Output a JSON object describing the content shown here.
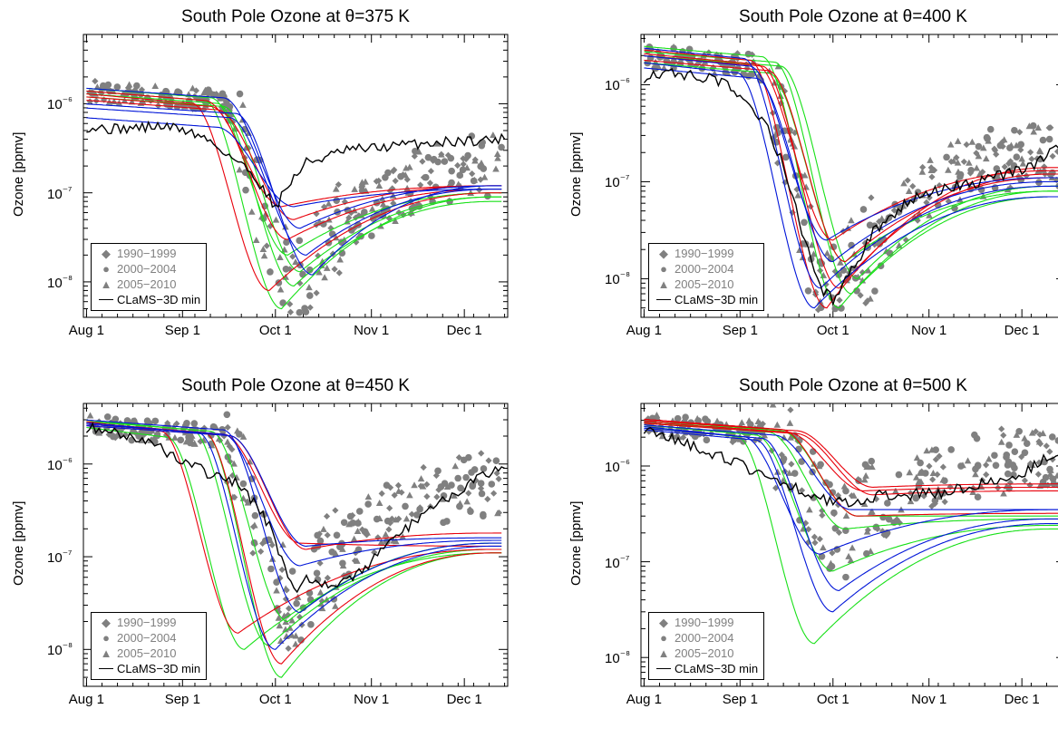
{
  "colors": {
    "obs": "#808080",
    "model_min": "#000000",
    "red": "#e8000b",
    "green": "#18e018",
    "blue": "#0015d8"
  },
  "legend": [
    {
      "label": "1990−1999",
      "symbol": "diamond"
    },
    {
      "label": "2000−2004",
      "symbol": "circle"
    },
    {
      "label": "2005−2010",
      "symbol": "triangle"
    },
    {
      "label": "CLaMS−3D min",
      "symbol": "line"
    }
  ],
  "chart_data": [
    {
      "type": "scatter",
      "title": "South Pole Ozone at θ=375 K",
      "ylabel": "Ozone [ppmv]",
      "yscale": "log",
      "ylim": [
        4e-09,
        6e-06
      ],
      "xlim": [
        "Jul 31",
        "Dec 15"
      ],
      "xtick_labels": [
        "Aug 1",
        "Sep 1",
        "Oct 1",
        "Nov 1",
        "Dec 1"
      ],
      "ytick_labels": [
        "10⁻⁶",
        "10⁻⁷",
        "10⁻⁸"
      ],
      "model_min": [
        [
          1,
          5.5e-07
        ],
        [
          10,
          5.2e-07
        ],
        [
          25,
          5.6e-07
        ],
        [
          32,
          5.2e-07
        ],
        [
          40,
          4e-07
        ],
        [
          48,
          2.5e-07
        ],
        [
          55,
          1.6e-07
        ],
        [
          58,
          1.1e-07
        ],
        [
          62,
          7e-08
        ],
        [
          66,
          1.2e-07
        ],
        [
          72,
          2.2e-07
        ],
        [
          78,
          2.5e-07
        ],
        [
          85,
          3e-07
        ],
        [
          95,
          3.2e-07
        ],
        [
          105,
          3.5e-07
        ],
        [
          120,
          3.8e-07
        ],
        [
          136,
          4e-07
        ]
      ],
      "models": {
        "red": [
          {
            "start": 1.3e-06,
            "min": 8e-09,
            "min_day": 60,
            "end": 1e-07
          },
          {
            "start": 1.2e-06,
            "min": 3e-08,
            "min_day": 66,
            "end": 1.1e-07
          },
          {
            "start": 1.1e-06,
            "min": 5e-08,
            "min_day": 68,
            "end": 1.2e-07
          },
          {
            "start": 1.4e-06,
            "min": 7e-08,
            "min_day": 64,
            "end": 1.2e-07
          }
        ],
        "green": [
          {
            "start": 1.4e-06,
            "min": 5e-09,
            "min_day": 64,
            "end": 9e-08
          },
          {
            "start": 1.3e-06,
            "min": 9e-09,
            "min_day": 68,
            "end": 8e-08
          },
          {
            "start": 1.2e-06,
            "min": 1.3e-08,
            "min_day": 70,
            "end": 9e-08
          },
          {
            "start": 1.5e-06,
            "min": 2e-08,
            "min_day": 66,
            "end": 1e-07
          }
        ],
        "blue": [
          {
            "start": 1e-06,
            "min": 1.2e-08,
            "min_day": 74,
            "end": 1.2e-07
          },
          {
            "start": 9e-07,
            "min": 2e-08,
            "min_day": 72,
            "end": 1.1e-07
          },
          {
            "start": 1.5e-06,
            "min": 4e-08,
            "min_day": 70,
            "end": 1.2e-07
          },
          {
            "start": 7e-07,
            "min": 7e-08,
            "min_day": 68,
            "end": 1.1e-07
          }
        ]
      },
      "obs_envelope": {
        "start": 1.4e-06,
        "drop_day": 50,
        "low": 1e-08,
        "low_day": 68,
        "recovery": 2e-07
      }
    },
    {
      "type": "scatter",
      "title": "South Pole Ozone at θ=400 K",
      "ylabel": "Ozone [ppmv]",
      "yscale": "log",
      "ylim": [
        4e-09,
        3.3e-06
      ],
      "xlim": [
        "Jul 31",
        "Dec 15"
      ],
      "xtick_labels": [
        "Aug 1",
        "Sep 1",
        "Oct 1",
        "Nov 1",
        "Dec 1"
      ],
      "ytick_labels": [
        "10⁻⁶",
        "10⁻⁷",
        "10⁻⁸"
      ],
      "model_min": [
        [
          1,
          1.2e-06
        ],
        [
          5,
          1.35e-06
        ],
        [
          15,
          1.25e-06
        ],
        [
          25,
          1.1e-06
        ],
        [
          32,
          8e-07
        ],
        [
          40,
          4e-07
        ],
        [
          46,
          1.5e-07
        ],
        [
          52,
          3e-08
        ],
        [
          58,
          8e-09
        ],
        [
          62,
          6e-09
        ],
        [
          68,
          1.2e-08
        ],
        [
          75,
          3e-08
        ],
        [
          85,
          6e-08
        ],
        [
          95,
          8e-08
        ],
        [
          110,
          1e-07
        ],
        [
          125,
          1.4e-07
        ],
        [
          136,
          2.4e-07
        ]
      ],
      "models": {
        "red": [
          {
            "start": 2.3e-06,
            "min": 5e-09,
            "min_day": 60,
            "end": 1.4e-07
          },
          {
            "start": 2e-06,
            "min": 8e-09,
            "min_day": 64,
            "end": 1.2e-07
          },
          {
            "start": 1.8e-06,
            "min": 1.5e-08,
            "min_day": 66,
            "end": 1.1e-07
          },
          {
            "start": 2.1e-06,
            "min": 2.5e-08,
            "min_day": 62,
            "end": 1.3e-07
          }
        ],
        "green": [
          {
            "start": 2.5e-06,
            "min": 5e-09,
            "min_day": 64,
            "end": 8e-08
          },
          {
            "start": 2.2e-06,
            "min": 7e-09,
            "min_day": 68,
            "end": 7e-08
          },
          {
            "start": 2e-06,
            "min": 1e-08,
            "min_day": 70,
            "end": 9e-08
          },
          {
            "start": 1.7e-06,
            "min": 1.5e-08,
            "min_day": 66,
            "end": 8e-08
          }
        ],
        "blue": [
          {
            "start": 1.7e-06,
            "min": 5e-09,
            "min_day": 56,
            "end": 7e-08
          },
          {
            "start": 2.4e-06,
            "min": 8e-09,
            "min_day": 58,
            "end": 9e-08
          },
          {
            "start": 1.5e-06,
            "min": 1.5e-08,
            "min_day": 62,
            "end": 1e-07
          },
          {
            "start": 2e-06,
            "min": 2.5e-08,
            "min_day": 60,
            "end": 1.1e-07
          }
        ]
      },
      "obs_envelope": {
        "start": 2e-06,
        "drop_day": 40,
        "low": 7e-09,
        "low_day": 62,
        "recovery": 2e-07
      }
    },
    {
      "type": "scatter",
      "title": "South Pole Ozone at θ=450 K",
      "ylabel": "Ozone [ppmv]",
      "yscale": "log",
      "ylim": [
        4e-09,
        4.5e-06
      ],
      "xlim": [
        "Jul 31",
        "Dec 15"
      ],
      "xtick_labels": [
        "Aug 1",
        "Sep 1",
        "Oct 1",
        "Nov 1",
        "Dec 1"
      ],
      "ytick_labels": [
        "10⁻⁶",
        "10⁻⁷",
        "10⁻⁸"
      ],
      "model_min": [
        [
          1,
          2.5e-06
        ],
        [
          10,
          2.2e-06
        ],
        [
          20,
          1.8e-06
        ],
        [
          30,
          1.2e-06
        ],
        [
          40,
          8e-07
        ],
        [
          50,
          6e-07
        ],
        [
          58,
          3e-07
        ],
        [
          64,
          1e-07
        ],
        [
          68,
          4e-08
        ],
        [
          72,
          6e-08
        ],
        [
          80,
          5e-08
        ],
        [
          88,
          6e-08
        ],
        [
          100,
          1.5e-07
        ],
        [
          110,
          3e-07
        ],
        [
          120,
          5e-07
        ],
        [
          128,
          7e-07
        ],
        [
          136,
          9e-07
        ]
      ],
      "models": {
        "red": [
          {
            "start": 2.9e-06,
            "min": 1.5e-08,
            "min_day": 50,
            "end": 1.2e-07
          },
          {
            "start": 2.8e-06,
            "min": 7e-09,
            "min_day": 64,
            "end": 1.1e-07
          },
          {
            "start": 2.6e-06,
            "min": 1.2e-07,
            "min_day": 72,
            "end": 1.8e-07
          },
          {
            "start": 2.7e-06,
            "min": 1.4e-07,
            "min_day": 70,
            "end": 1.3e-07
          }
        ],
        "green": [
          {
            "start": 2.5e-06,
            "min": 1e-08,
            "min_day": 52,
            "end": 1.1e-07
          },
          {
            "start": 2.8e-06,
            "min": 5e-09,
            "min_day": 64,
            "end": 1.1e-07
          },
          {
            "start": 3e-06,
            "min": 1.1e-08,
            "min_day": 60,
            "end": 1.2e-07
          },
          {
            "start": 2.9e-06,
            "min": 2e-08,
            "min_day": 66,
            "end": 1.4e-07
          }
        ],
        "blue": [
          {
            "start": 2.8e-06,
            "min": 1e-08,
            "min_day": 62,
            "end": 1.3e-07
          },
          {
            "start": 3e-06,
            "min": 2.5e-08,
            "min_day": 70,
            "end": 1.4e-07
          },
          {
            "start": 2.7e-06,
            "min": 8e-08,
            "min_day": 70,
            "end": 1.5e-07
          },
          {
            "start": 2.6e-06,
            "min": 1.3e-07,
            "min_day": 72,
            "end": 1.6e-07
          }
        ]
      },
      "obs_envelope": {
        "start": 2.6e-06,
        "drop_day": 45,
        "low": 3e-08,
        "low_day": 68,
        "recovery": 6e-07
      }
    },
    {
      "type": "scatter",
      "title": "South Pole Ozone at θ=500 K",
      "ylabel": "Ozone [ppmv]",
      "yscale": "log",
      "ylim": [
        5e-09,
        4.5e-06
      ],
      "xlim": [
        "Jul 31",
        "Dec 15"
      ],
      "xtick_labels": [
        "Aug 1",
        "Sep 1",
        "Oct 1",
        "Nov 1",
        "Dec 1"
      ],
      "ytick_labels": [
        "10⁻⁶",
        "10⁻⁷",
        "10⁻⁸"
      ],
      "model_min": [
        [
          1,
          2.5e-06
        ],
        [
          10,
          2e-06
        ],
        [
          20,
          1.5e-06
        ],
        [
          30,
          1.1e-06
        ],
        [
          40,
          8e-07
        ],
        [
          50,
          6e-07
        ],
        [
          58,
          4.5e-07
        ],
        [
          66,
          4.2e-07
        ],
        [
          75,
          4.8e-07
        ],
        [
          85,
          5e-07
        ],
        [
          95,
          5.2e-07
        ],
        [
          105,
          6e-07
        ],
        [
          115,
          7e-07
        ],
        [
          125,
          9e-07
        ],
        [
          130,
          1.2e-06
        ],
        [
          136,
          1.5e-06
        ]
      ],
      "models": {
        "red": [
          {
            "start": 3e-06,
            "min": 6e-07,
            "min_day": 75,
            "end": 6.5e-07
          },
          {
            "start": 2.9e-06,
            "min": 5.5e-07,
            "min_day": 72,
            "end": 6e-07
          },
          {
            "start": 2.8e-06,
            "min": 5e-07,
            "min_day": 75,
            "end": 5.5e-07
          },
          {
            "start": 3.1e-06,
            "min": 3e-07,
            "min_day": 70,
            "end": 3.2e-07
          }
        ],
        "green": [
          {
            "start": 2.6e-06,
            "min": 1.4e-08,
            "min_day": 56,
            "end": 2.2e-07
          },
          {
            "start": 2.7e-06,
            "min": 8e-08,
            "min_day": 62,
            "end": 2.4e-07
          },
          {
            "start": 2.9e-06,
            "min": 2.2e-07,
            "min_day": 66,
            "end": 2.8e-07
          },
          {
            "start": 3e-06,
            "min": 3e-07,
            "min_day": 70,
            "end": 3e-07
          }
        ],
        "blue": [
          {
            "start": 2.4e-06,
            "min": 3e-08,
            "min_day": 62,
            "end": 2.5e-07
          },
          {
            "start": 2.5e-06,
            "min": 5e-08,
            "min_day": 64,
            "end": 2.8e-07
          },
          {
            "start": 2.6e-06,
            "min": 1.2e-07,
            "min_day": 58,
            "end": 3.5e-07
          },
          {
            "start": 2.7e-06,
            "min": 3.5e-07,
            "min_day": 68,
            "end": 3.5e-07
          }
        ]
      },
      "obs_envelope": {
        "start": 2.8e-06,
        "drop_day": 40,
        "low": 2e-07,
        "low_day": 65,
        "recovery": 1.2e-06
      }
    }
  ]
}
